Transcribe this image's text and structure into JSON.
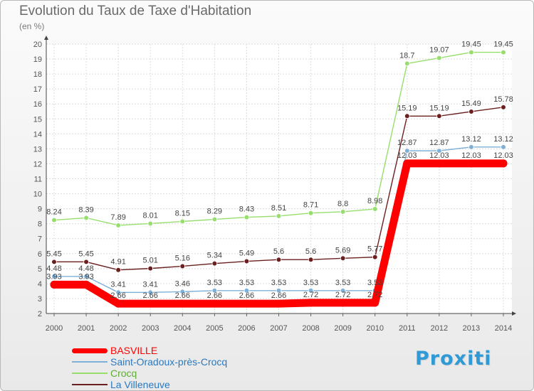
{
  "chart_data": {
    "type": "line",
    "title": "Evolution du Taux de Taxe d'Habitation",
    "ylabel": "(en %)",
    "xlabel": "",
    "ylim": [
      2,
      20
    ],
    "yticks": [
      2,
      3,
      4,
      5,
      6,
      7,
      8,
      9,
      10,
      11,
      12,
      13,
      14,
      15,
      16,
      17,
      18,
      19,
      20
    ],
    "categories": [
      "2000",
      "2001",
      "2002",
      "2003",
      "2004",
      "2005",
      "2006",
      "2007",
      "2008",
      "2009",
      "2010",
      "2011",
      "2012",
      "2013",
      "2014"
    ],
    "series": [
      {
        "name": "BASVILLE",
        "color": "#ff0000",
        "values": [
          3.93,
          3.93,
          2.66,
          2.66,
          2.66,
          2.66,
          2.66,
          2.66,
          2.72,
          2.72,
          2.72,
          12.03,
          12.03,
          12.03,
          12.03
        ],
        "labels": [
          "3.93",
          "3.93",
          "2.66",
          "2.66",
          "2.66",
          "2.66",
          "2.66",
          "2.66",
          "2.72",
          "2.72",
          "2.72",
          "12.03",
          "12.03",
          "12.03",
          "12.03"
        ]
      },
      {
        "name": "Saint-Oradoux-près-Crocq",
        "color": "#7fb1d8",
        "values": [
          4.48,
          4.48,
          3.41,
          3.41,
          3.46,
          3.53,
          3.53,
          3.53,
          3.53,
          3.53,
          3.53,
          12.87,
          12.87,
          13.12,
          13.12
        ],
        "labels": [
          "4.48",
          "4.48",
          "3.41",
          "3.41",
          "3.46",
          "3.53",
          "3.53",
          "3.53",
          "3.53",
          "3.53",
          "3.53",
          "12.87",
          "12.87",
          "13.12",
          "13.12"
        ]
      },
      {
        "name": "Crocq",
        "color": "#98de6e",
        "values": [
          8.24,
          8.39,
          7.89,
          8.01,
          8.15,
          8.29,
          8.43,
          8.51,
          8.71,
          8.8,
          8.98,
          18.7,
          19.07,
          19.45,
          19.45
        ],
        "labels": [
          "8.24",
          "8.39",
          "7.89",
          "8.01",
          "8.15",
          "8.29",
          "8.43",
          "8.51",
          "8.71",
          "8.8",
          "8.98",
          "18.7",
          "19.07",
          "19.45",
          "19.45"
        ]
      },
      {
        "name": "La Villeneuve",
        "color": "#6b1f1f",
        "values": [
          5.45,
          5.45,
          4.91,
          5.01,
          5.16,
          5.34,
          5.49,
          5.6,
          5.6,
          5.69,
          5.77,
          15.19,
          15.19,
          15.49,
          15.78
        ],
        "labels": [
          "5.45",
          "5.45",
          "4.91",
          "5.01",
          "5.16",
          "5.34",
          "5.49",
          "5.6",
          "5.6",
          "5.69",
          "5.77",
          "15.19",
          "15.19",
          "15.49",
          "15.78"
        ]
      }
    ],
    "legend_position": "bottom-left"
  },
  "logo": {
    "text": "Proxiti"
  }
}
